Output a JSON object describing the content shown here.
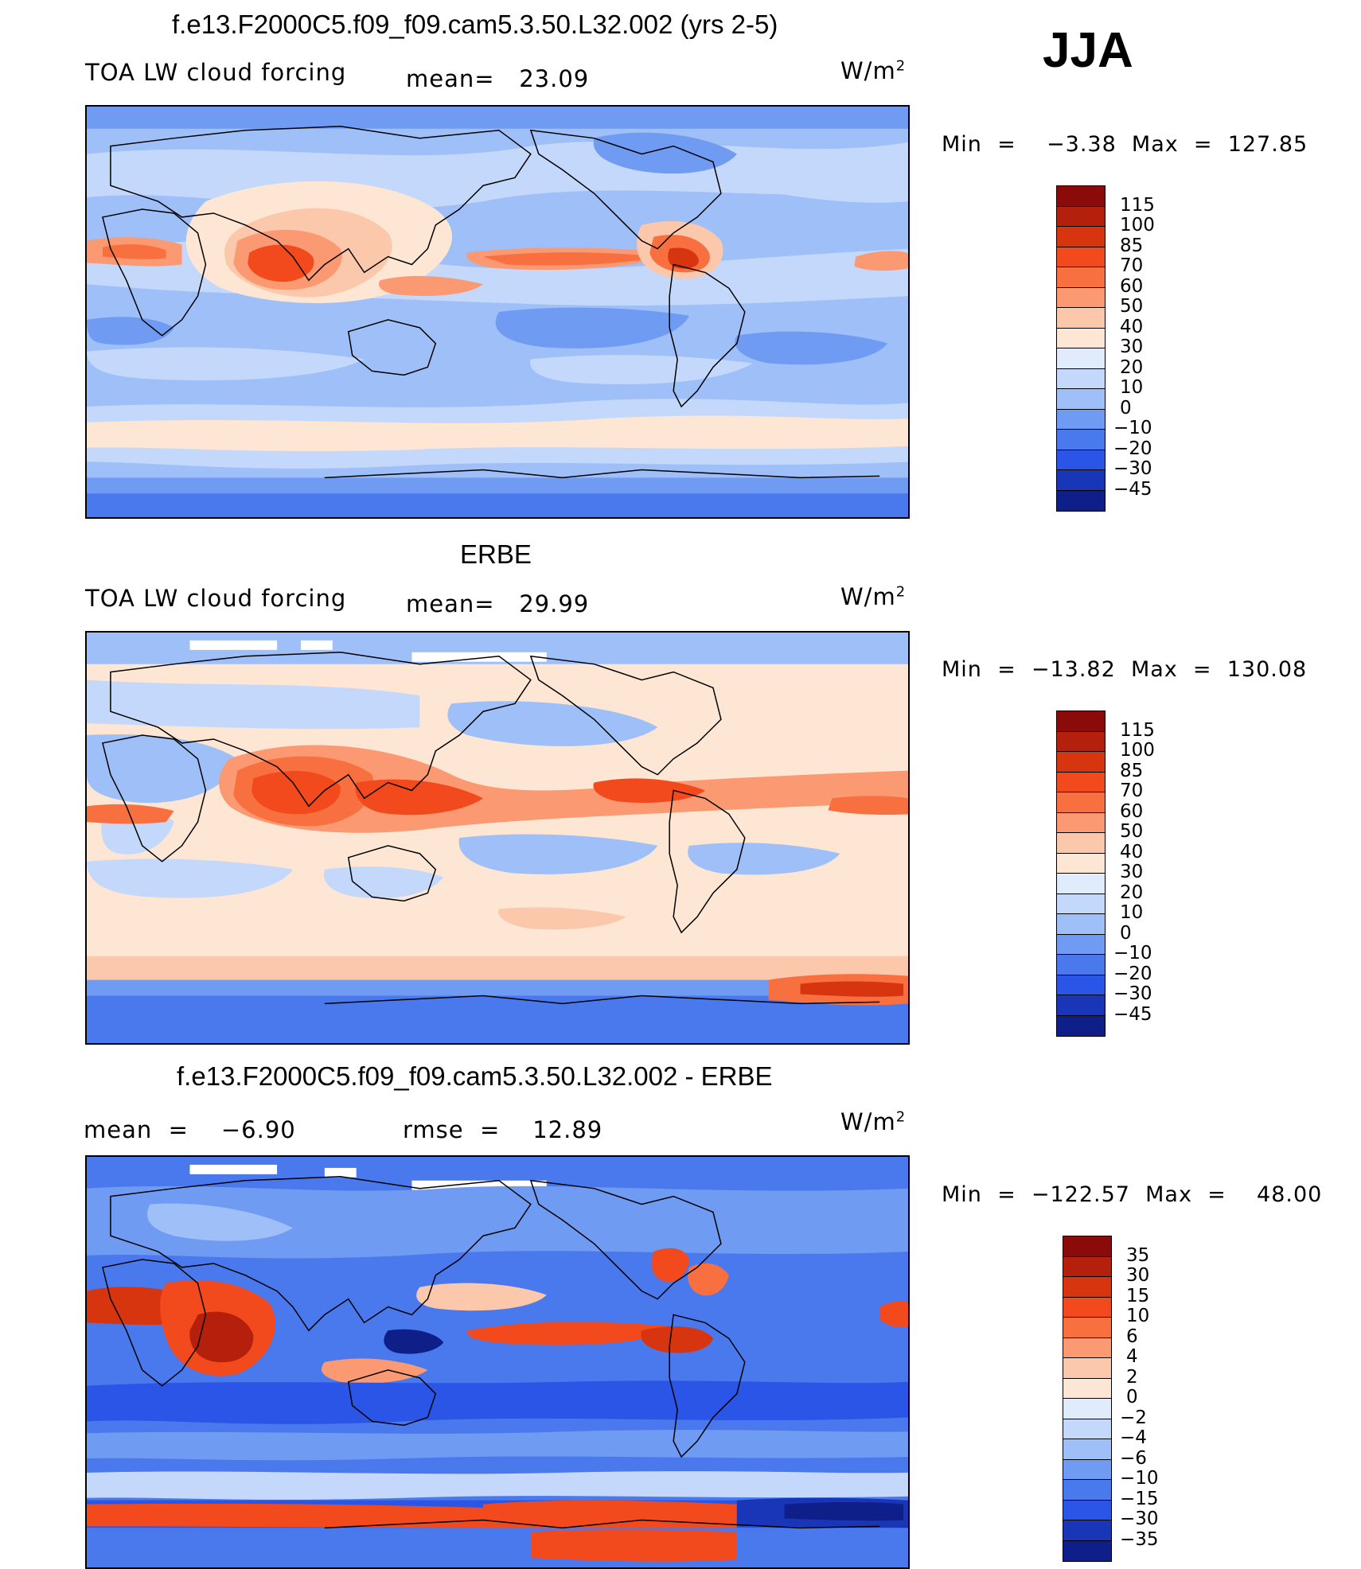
{
  "season": "JJA",
  "units": "W/m",
  "units_sup": "2",
  "panels": [
    {
      "title": "f.e13.F2000C5.f09_f09.cam5.3.50.L32.002 (yrs 2-5)",
      "left_label": "TOA LW cloud forcing",
      "mid_label": "mean=   23.09",
      "min_label": "Min  =    −3.38  Max  =  127.85",
      "levels": [
        "115",
        "100",
        "85",
        "70",
        "60",
        "50",
        "40",
        "30",
        "20",
        "10",
        "0",
        "−10",
        "−20",
        "−30",
        "−45"
      ],
      "colors": [
        "#8b0a0a",
        "#b5200c",
        "#d63510",
        "#f24a1d",
        "#f8703f",
        "#fb9a72",
        "#fcc8ac",
        "#fde6d4",
        "#e0ebfb",
        "#c4d8fb",
        "#9fbff8",
        "#6f9bf2",
        "#4a79ee",
        "#2a55e6",
        "#1a36b8",
        "#0f1f8a"
      ]
    },
    {
      "title": "ERBE",
      "left_label": "TOA LW cloud forcing",
      "mid_label": "mean=   29.99",
      "min_label": "Min  =  −13.82  Max  =  130.08",
      "levels": [
        "115",
        "100",
        "85",
        "70",
        "60",
        "50",
        "40",
        "30",
        "20",
        "10",
        "0",
        "−10",
        "−20",
        "−30",
        "−45"
      ],
      "colors": [
        "#8b0a0a",
        "#b5200c",
        "#d63510",
        "#f24a1d",
        "#f8703f",
        "#fb9a72",
        "#fcc8ac",
        "#fde6d4",
        "#e0ebfb",
        "#c4d8fb",
        "#9fbff8",
        "#6f9bf2",
        "#4a79ee",
        "#2a55e6",
        "#1a36b8",
        "#0f1f8a"
      ]
    },
    {
      "title": "f.e13.F2000C5.f09_f09.cam5.3.50.L32.002 - ERBE",
      "left_label": "mean  =    −6.90",
      "mid_label": "rmse  =    12.89",
      "min_label": "Min  =  −122.57  Max  =    48.00",
      "levels": [
        "35",
        "30",
        "15",
        "10",
        "6",
        "4",
        "2",
        "0",
        "−2",
        "−4",
        "−6",
        "−10",
        "−15",
        "−30",
        "−35"
      ],
      "colors": [
        "#8b0a0a",
        "#b5200c",
        "#d63510",
        "#f24a1d",
        "#f8703f",
        "#fb9a72",
        "#fcc8ac",
        "#fde6d4",
        "#e0ebfb",
        "#c4d8fb",
        "#9fbff8",
        "#6f9bf2",
        "#4a79ee",
        "#2a55e6",
        "#1a36b8",
        "#0f1f8a"
      ]
    }
  ]
}
